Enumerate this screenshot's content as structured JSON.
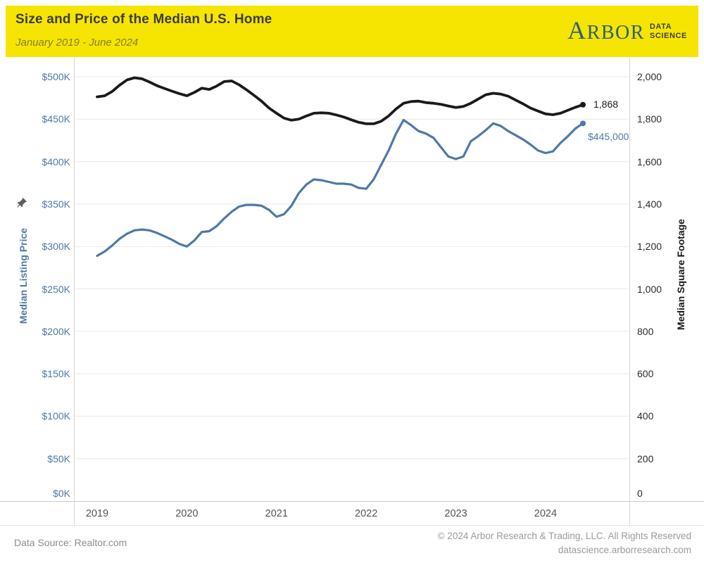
{
  "header": {
    "title": "Size and Price of the Median U.S. Home",
    "subtitle": "January 2019 - June 2024",
    "background_color": "#F6E500",
    "logo": {
      "brand": "Arbor",
      "line1": "DATA",
      "line2": "SCIENCE"
    }
  },
  "chart_data": {
    "type": "line",
    "title": "Size and Price of the Median U.S. Home",
    "subtitle": "January 2019 - June 2024",
    "x_unit": "month",
    "x_start": "2019-01",
    "x_end": "2024-06",
    "x_tick_labels": [
      "2019",
      "2020",
      "2021",
      "2022",
      "2023",
      "2024"
    ],
    "grid": "horizontal-only",
    "gridline_color": "#e9e9e9",
    "border_color": "#d4d4d4",
    "left_axis": {
      "title": "Median Listing Price",
      "color": "#4e79a7",
      "range": [
        0,
        500000
      ],
      "tick_step": 50000,
      "tick_labels": [
        "$0K",
        "$50K",
        "$100K",
        "$150K",
        "$200K",
        "$250K",
        "$300K",
        "$350K",
        "$400K",
        "$450K",
        "$500K"
      ]
    },
    "right_axis": {
      "title": "Median Square Footage",
      "color": "#1a1a1a",
      "range": [
        0,
        2000
      ],
      "tick_step": 200,
      "tick_labels": [
        "0",
        "200",
        "400",
        "600",
        "800",
        "1,000",
        "1,200",
        "1,400",
        "1,600",
        "1,800",
        "2,000"
      ]
    },
    "series": [
      {
        "name": "Median Listing Price",
        "axis": "left",
        "color": "#4e79a7",
        "line_width": 3.2,
        "end_label": "$445,000",
        "values": [
          289000,
          294000,
          301000,
          309000,
          315000,
          319000,
          320000,
          319000,
          316000,
          312000,
          308000,
          303000,
          300000,
          307000,
          317000,
          318000,
          324000,
          333000,
          341000,
          347000,
          349000,
          349000,
          348000,
          343000,
          335000,
          338000,
          348000,
          363000,
          373000,
          379000,
          378000,
          376000,
          374000,
          374000,
          373000,
          369000,
          368000,
          379000,
          396000,
          413000,
          433000,
          449000,
          443000,
          436000,
          433000,
          428000,
          417000,
          406000,
          403000,
          406000,
          424000,
          430000,
          437000,
          445000,
          442000,
          436000,
          431000,
          426000,
          420000,
          413000,
          410000,
          412000,
          422000,
          430000,
          439000,
          445000
        ]
      },
      {
        "name": "Median Square Footage",
        "axis": "right",
        "color": "#1a1a1a",
        "line_width": 3.8,
        "end_label": "1,868",
        "values": [
          1905,
          1910,
          1930,
          1960,
          1985,
          1995,
          1990,
          1975,
          1958,
          1945,
          1932,
          1920,
          1910,
          1926,
          1946,
          1940,
          1956,
          1977,
          1980,
          1962,
          1938,
          1912,
          1885,
          1852,
          1828,
          1805,
          1795,
          1800,
          1815,
          1828,
          1830,
          1828,
          1820,
          1810,
          1797,
          1785,
          1778,
          1778,
          1790,
          1815,
          1848,
          1875,
          1883,
          1885,
          1878,
          1875,
          1870,
          1862,
          1855,
          1860,
          1875,
          1895,
          1915,
          1922,
          1918,
          1908,
          1890,
          1872,
          1852,
          1838,
          1825,
          1821,
          1828,
          1842,
          1856,
          1868
        ]
      }
    ]
  },
  "footer": {
    "source": "Data Source: Realtor.com",
    "copyright": "© 2024 Arbor Research & Trading, LLC. All Rights Reserved",
    "website": "datascience.arborresearch.com"
  }
}
